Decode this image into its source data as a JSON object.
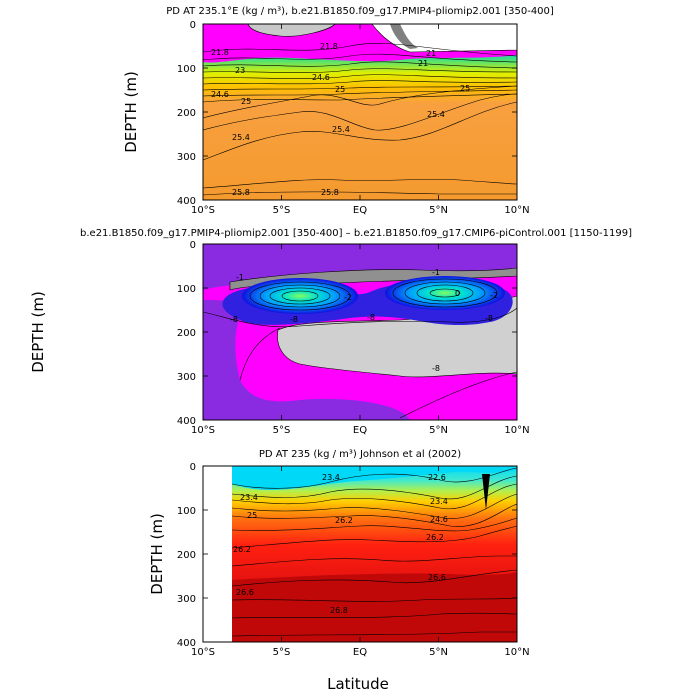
{
  "chart_data": [
    {
      "type": "contour",
      "title": "PD AT 235.1°E (kg / m³), b.e21.B1850.f09_g17.PMIP4-pliomip2.001 [350-400]",
      "ylabel": "DEPTH (m)",
      "xlabel": "",
      "x_ticks": [
        "10°S",
        "5°S",
        "EQ",
        "5°N",
        "10°N"
      ],
      "y_ticks": [
        "0",
        "100",
        "200",
        "300",
        "400"
      ],
      "ylim": [
        400,
        0
      ],
      "contour_labels": [
        "21.8",
        "21.8",
        "21",
        "21",
        "23",
        "24.6",
        "24.6",
        "25",
        "25",
        "25",
        "25.4",
        "25.4",
        "25.4",
        "25.8",
        "25.8"
      ]
    },
    {
      "type": "contour",
      "title": "b.e21.B1850.f09_g17.PMIP4-pliomip2.001 [350-400] – b.e21.B1850.f09_g17.CMIP6-piControl.001 [1150-1199]",
      "ylabel": "DEPTH (m)",
      "xlabel": "",
      "x_ticks": [
        "10°S",
        "5°S",
        "EQ",
        "5°N",
        "10°N"
      ],
      "y_ticks": [
        "0",
        "100",
        "200",
        "300",
        "400"
      ],
      "ylim": [
        400,
        0
      ],
      "contour_labels": [
        "-1",
        "-1",
        "-2",
        "-2",
        "-8",
        "-8",
        "-8",
        "-8",
        "-8",
        "0"
      ]
    },
    {
      "type": "contour",
      "title": "PD AT 235 (kg / m³) Johnson et al (2002)",
      "ylabel": "DEPTH (m)",
      "xlabel": "Latitude",
      "x_ticks": [
        "10°S",
        "5°S",
        "EQ",
        "5°N",
        "10°N"
      ],
      "y_ticks": [
        "0",
        "100",
        "200",
        "300",
        "400"
      ],
      "ylim": [
        400,
        0
      ],
      "contour_labels": [
        "23.4",
        "23.4",
        "25",
        "26.2",
        "26.2",
        "26.2",
        "26.6",
        "26.6",
        "26.8",
        "22.6",
        "23.4",
        "24.6"
      ]
    }
  ]
}
